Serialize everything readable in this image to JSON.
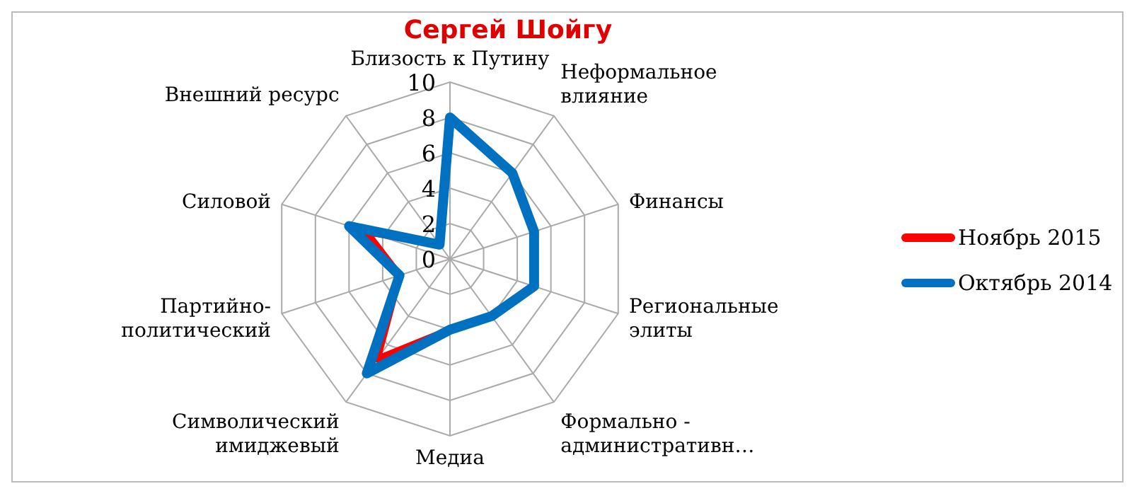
{
  "chart_data": {
    "type": "radar",
    "title": "Сергей Шойгу",
    "categories": [
      "Близость к Путину",
      "Неформальное\nвлияние",
      "Финансы",
      "Региональные\nэлиты",
      "Формально -\nадминистративн…",
      "Медиа",
      "Символический\nимиджевый",
      "Партийно-\nполитический",
      "Силовой",
      "Внешний ресурс"
    ],
    "series": [
      {
        "name": "Ноябрь 2015",
        "color": "#ff0000",
        "values": [
          8,
          6,
          5,
          5,
          4,
          4,
          7,
          3,
          5,
          1
        ]
      },
      {
        "name": "Октябрь 2014",
        "color": "#0070c0",
        "values": [
          8,
          6,
          5,
          5,
          4,
          4,
          8,
          3,
          6,
          1
        ]
      }
    ],
    "ylim": [
      0,
      10
    ],
    "yticks": [
      0,
      2,
      4,
      6,
      8,
      10
    ],
    "grid": true,
    "legend": "right"
  }
}
